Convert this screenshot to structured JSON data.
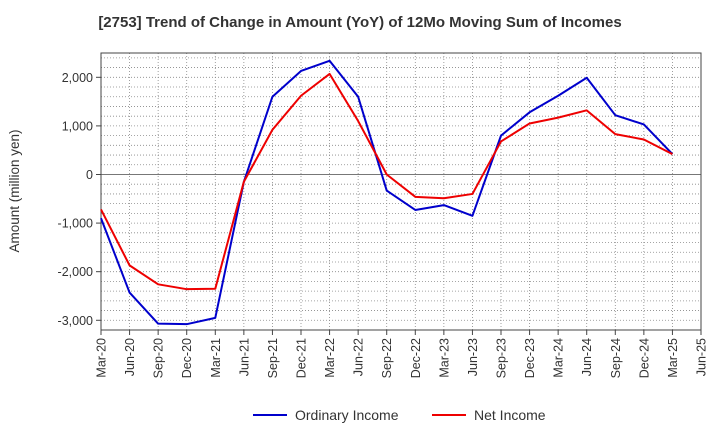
{
  "chart_data": {
    "type": "line",
    "title": "[2753]  Trend of Change in Amount (YoY) of 12Mo Moving Sum of Incomes",
    "xlabel": "",
    "ylabel": "Amount (million yen)",
    "ylim": [
      -3200,
      2500
    ],
    "yticks": [
      -3000,
      -2000,
      -1000,
      0,
      1000,
      2000
    ],
    "ytick_labels": [
      "-3,000",
      "-2,000",
      "-1,000",
      "0",
      "1,000",
      "2,000"
    ],
    "grid": true,
    "legend_position": "bottom",
    "categories": [
      "Mar-20",
      "Jun-20",
      "Sep-20",
      "Dec-20",
      "Mar-21",
      "Jun-21",
      "Sep-21",
      "Dec-21",
      "Mar-22",
      "Jun-22",
      "Sep-22",
      "Dec-22",
      "Mar-23",
      "Jun-23",
      "Sep-23",
      "Dec-23",
      "Mar-24",
      "Jun-24",
      "Sep-24",
      "Dec-24",
      "Mar-25",
      "Jun-25"
    ],
    "series": [
      {
        "name": "Ordinary Income",
        "color": "#0000cc",
        "values": [
          -900,
          -2430,
          -3070,
          -3080,
          -2950,
          -150,
          1600,
          2130,
          2340,
          1600,
          -330,
          -730,
          -630,
          -850,
          800,
          1280,
          1620,
          1990,
          1220,
          1030,
          420,
          null
        ]
      },
      {
        "name": "Net Income",
        "color": "#ee0000",
        "values": [
          -720,
          -1870,
          -2260,
          -2360,
          -2350,
          -150,
          920,
          1620,
          2070,
          1100,
          0,
          -460,
          -490,
          -400,
          680,
          1050,
          1170,
          1320,
          830,
          720,
          420,
          null
        ]
      }
    ]
  }
}
